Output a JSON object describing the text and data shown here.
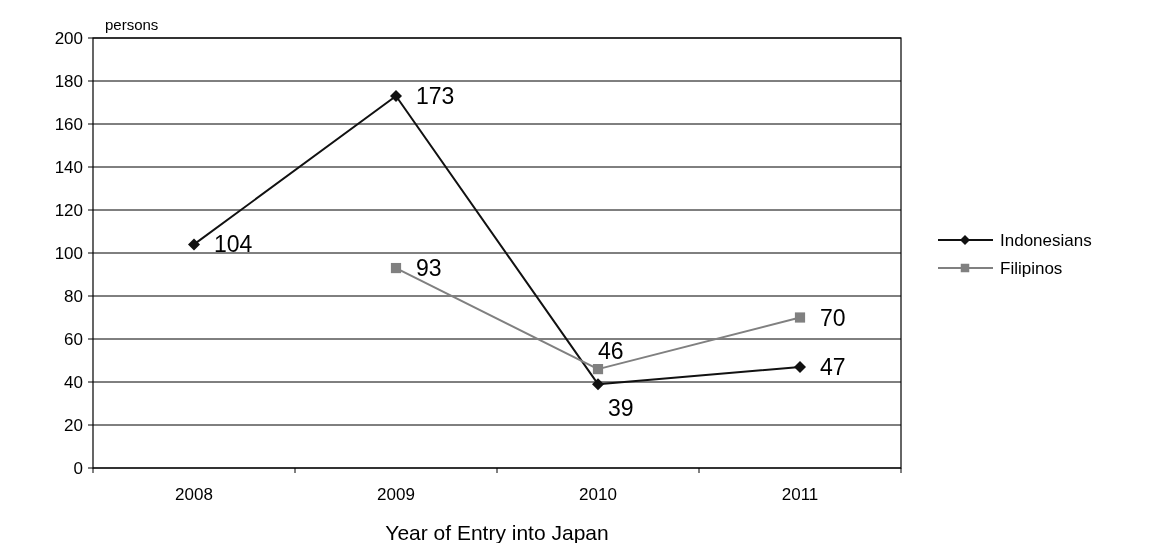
{
  "chart_data": {
    "type": "line",
    "ylabel": "persons",
    "xlabel": "Year of Entry into Japan",
    "categories": [
      "2008",
      "2009",
      "2010",
      "2011"
    ],
    "series": [
      {
        "name": "Indonesians",
        "color": "#111111",
        "marker": "diamond",
        "values": [
          104,
          173,
          39,
          47
        ]
      },
      {
        "name": "Filipinos",
        "color": "#808080",
        "marker": "square",
        "values": [
          null,
          93,
          46,
          70
        ]
      }
    ],
    "ylim": [
      0,
      200
    ],
    "yticks": [
      0,
      20,
      40,
      60,
      80,
      100,
      120,
      140,
      160,
      180,
      200
    ],
    "grid": "y",
    "legend": "right",
    "data_labels": true
  }
}
